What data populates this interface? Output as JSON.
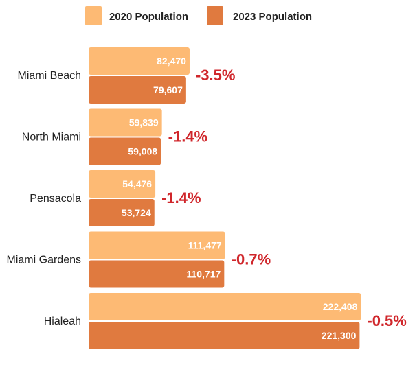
{
  "chart_data": {
    "type": "bar",
    "orientation": "horizontal",
    "title": "",
    "xlabel": "",
    "ylabel": "",
    "legend_position": "top",
    "grid": false,
    "xlim": [
      0,
      225000
    ],
    "categories": [
      "Miami Beach",
      "North Miami",
      "Pensacola",
      "Miami Gardens",
      "Hialeah"
    ],
    "series": [
      {
        "name": "2020 Population",
        "color": "#FDBA74",
        "values": [
          82470,
          59839,
          54476,
          111477,
          222408
        ],
        "labels": [
          "82,470",
          "59,839",
          "54,476",
          "111,477",
          "222,408"
        ]
      },
      {
        "name": "2023 Population",
        "color": "#E07A3F",
        "values": [
          79607,
          59008,
          53724,
          110717,
          221300
        ],
        "labels": [
          "79,607",
          "59,008",
          "53,724",
          "110,717",
          "221,300"
        ]
      }
    ],
    "change_labels": [
      "-3.5%",
      "-1.4%",
      "-1.4%",
      "-0.7%",
      "-0.5%"
    ],
    "change_color": "#D0262B"
  }
}
